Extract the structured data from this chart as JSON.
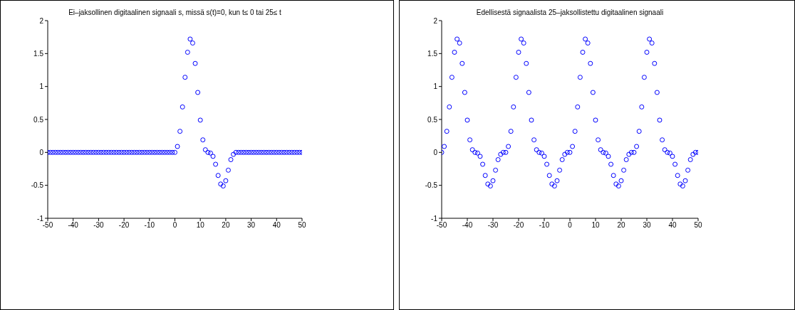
{
  "chart_data": [
    {
      "type": "scatter",
      "title": "Ei–jaksollinen digitaalinen signaali s, missä s(t)=0, kun t≤ 0 tai 25≤ t",
      "marker": "circle",
      "xlim": [
        -50,
        50
      ],
      "xticks": [
        -50,
        -40,
        -30,
        -20,
        -10,
        0,
        10,
        20,
        30,
        40,
        50
      ],
      "ylim": [
        -1,
        2
      ],
      "yticks": [
        -1,
        -0.5,
        0,
        0.5,
        1,
        1.5,
        2
      ],
      "legend": false,
      "grid": false,
      "series": [
        {
          "color": "#0000ff",
          "x": [
            -50,
            -49,
            -48,
            -47,
            -46,
            -45,
            -44,
            -43,
            -42,
            -41,
            -40,
            -39,
            -38,
            -37,
            -36,
            -35,
            -34,
            -33,
            -32,
            -31,
            -30,
            -29,
            -28,
            -27,
            -26,
            -25,
            -24,
            -23,
            -22,
            -21,
            -20,
            -19,
            -18,
            -17,
            -16,
            -15,
            -14,
            -13,
            -12,
            -11,
            -10,
            -9,
            -8,
            -7,
            -6,
            -5,
            -4,
            -3,
            -2,
            -1,
            0,
            1,
            2,
            3,
            4,
            5,
            6,
            7,
            8,
            9,
            10,
            11,
            12,
            13,
            14,
            15,
            16,
            17,
            18,
            19,
            20,
            21,
            22,
            23,
            24,
            25,
            26,
            27,
            28,
            29,
            30,
            31,
            32,
            33,
            34,
            35,
            36,
            37,
            38,
            39,
            40,
            41,
            42,
            43,
            44,
            45,
            46,
            47,
            48,
            49,
            50
          ],
          "values": [
            0,
            0,
            0,
            0,
            0,
            0,
            0,
            0,
            0,
            0,
            0,
            0,
            0,
            0,
            0,
            0,
            0,
            0,
            0,
            0,
            0,
            0,
            0,
            0,
            0,
            0,
            0,
            0,
            0,
            0,
            0,
            0,
            0,
            0,
            0,
            0,
            0,
            0,
            0,
            0,
            0,
            0,
            0,
            0,
            0,
            0,
            0,
            0,
            0,
            0,
            0,
            0.09,
            0.32,
            0.69,
            1.14,
            1.52,
            1.72,
            1.66,
            1.35,
            0.91,
            0.49,
            0.19,
            0.04,
            0,
            -0.01,
            -0.06,
            -0.18,
            -0.35,
            -0.48,
            -0.51,
            -0.43,
            -0.27,
            -0.11,
            -0.03,
            0,
            0,
            0,
            0,
            0,
            0,
            0,
            0,
            0,
            0,
            0,
            0,
            0,
            0,
            0,
            0,
            0,
            0,
            0,
            0,
            0,
            0,
            0,
            0,
            0,
            0,
            0
          ]
        }
      ]
    },
    {
      "type": "scatter",
      "title": "Edellisestä signaalista 25–jaksollistettu digitaalinen signaali",
      "marker": "circle",
      "xlim": [
        -50,
        50
      ],
      "xticks": [
        -50,
        -40,
        -30,
        -20,
        -10,
        0,
        10,
        20,
        30,
        40,
        50
      ],
      "ylim": [
        -1,
        2
      ],
      "yticks": [
        -1,
        -0.5,
        0,
        0.5,
        1,
        1.5,
        2
      ],
      "legend": false,
      "grid": false,
      "series": [
        {
          "color": "#0000ff",
          "x": [
            -50,
            -49,
            -48,
            -47,
            -46,
            -45,
            -44,
            -43,
            -42,
            -41,
            -40,
            -39,
            -38,
            -37,
            -36,
            -35,
            -34,
            -33,
            -32,
            -31,
            -30,
            -29,
            -28,
            -27,
            -26,
            -25,
            -24,
            -23,
            -22,
            -21,
            -20,
            -19,
            -18,
            -17,
            -16,
            -15,
            -14,
            -13,
            -12,
            -11,
            -10,
            -9,
            -8,
            -7,
            -6,
            -5,
            -4,
            -3,
            -2,
            -1,
            0,
            1,
            2,
            3,
            4,
            5,
            6,
            7,
            8,
            9,
            10,
            11,
            12,
            13,
            14,
            15,
            16,
            17,
            18,
            19,
            20,
            21,
            22,
            23,
            24,
            25,
            26,
            27,
            28,
            29,
            30,
            31,
            32,
            33,
            34,
            35,
            36,
            37,
            38,
            39,
            40,
            41,
            42,
            43,
            44,
            45,
            46,
            47,
            48,
            49,
            50
          ],
          "values": [
            0,
            0.09,
            0.32,
            0.69,
            1.14,
            1.52,
            1.72,
            1.66,
            1.35,
            0.91,
            0.49,
            0.19,
            0.04,
            0,
            -0.01,
            -0.06,
            -0.18,
            -0.35,
            -0.48,
            -0.51,
            -0.43,
            -0.27,
            -0.11,
            -0.03,
            0,
            0,
            0.09,
            0.32,
            0.69,
            1.14,
            1.52,
            1.72,
            1.66,
            1.35,
            0.91,
            0.49,
            0.19,
            0.04,
            0,
            -0.01,
            -0.06,
            -0.18,
            -0.35,
            -0.48,
            -0.51,
            -0.43,
            -0.27,
            -0.11,
            -0.03,
            0,
            0,
            0.09,
            0.32,
            0.69,
            1.14,
            1.52,
            1.72,
            1.66,
            1.35,
            0.91,
            0.49,
            0.19,
            0.04,
            0,
            -0.01,
            -0.06,
            -0.18,
            -0.35,
            -0.48,
            -0.51,
            -0.43,
            -0.27,
            -0.11,
            -0.03,
            0,
            0,
            0.09,
            0.32,
            0.69,
            1.14,
            1.52,
            1.72,
            1.66,
            1.35,
            0.91,
            0.49,
            0.19,
            0.04,
            0,
            -0.01,
            -0.06,
            -0.18,
            -0.35,
            -0.48,
            -0.51,
            -0.43,
            -0.27,
            -0.11,
            -0.03,
            0,
            0
          ]
        }
      ]
    }
  ]
}
